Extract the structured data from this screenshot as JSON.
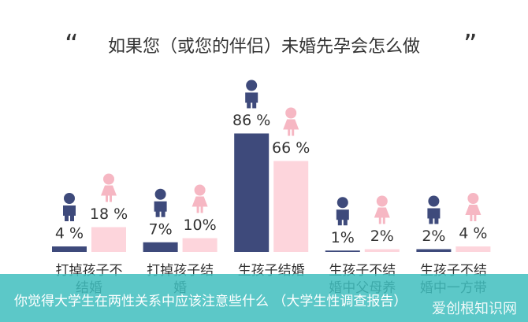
{
  "chart_data": {
    "type": "bar",
    "title": "如果您（或您的伴侣）未婚先孕会怎么做",
    "categories": [
      "打掉孩子不结婚",
      "打掉孩子结婚",
      "生孩子结婚",
      "生孩子不结婚中父母养",
      "生孩子不结婚中一方带"
    ],
    "series": [
      {
        "color": "#3e4a7b",
        "values": [
          4,
          7,
          86,
          1,
          2
        ],
        "value_labels": [
          "4 %",
          "7%",
          "86 %",
          "1%",
          "2%"
        ]
      },
      {
        "color": "#fdd5dc",
        "values": [
          18,
          10,
          66,
          2,
          4
        ],
        "value_labels": [
          "18 %",
          "10%",
          "66 %",
          "2%",
          "4 %"
        ]
      }
    ]
  },
  "banner": {
    "text": "你觉得大学生在两性关系中应该注意些什么 （大学生性调查报告）",
    "watermark": "爱创根知识网"
  }
}
